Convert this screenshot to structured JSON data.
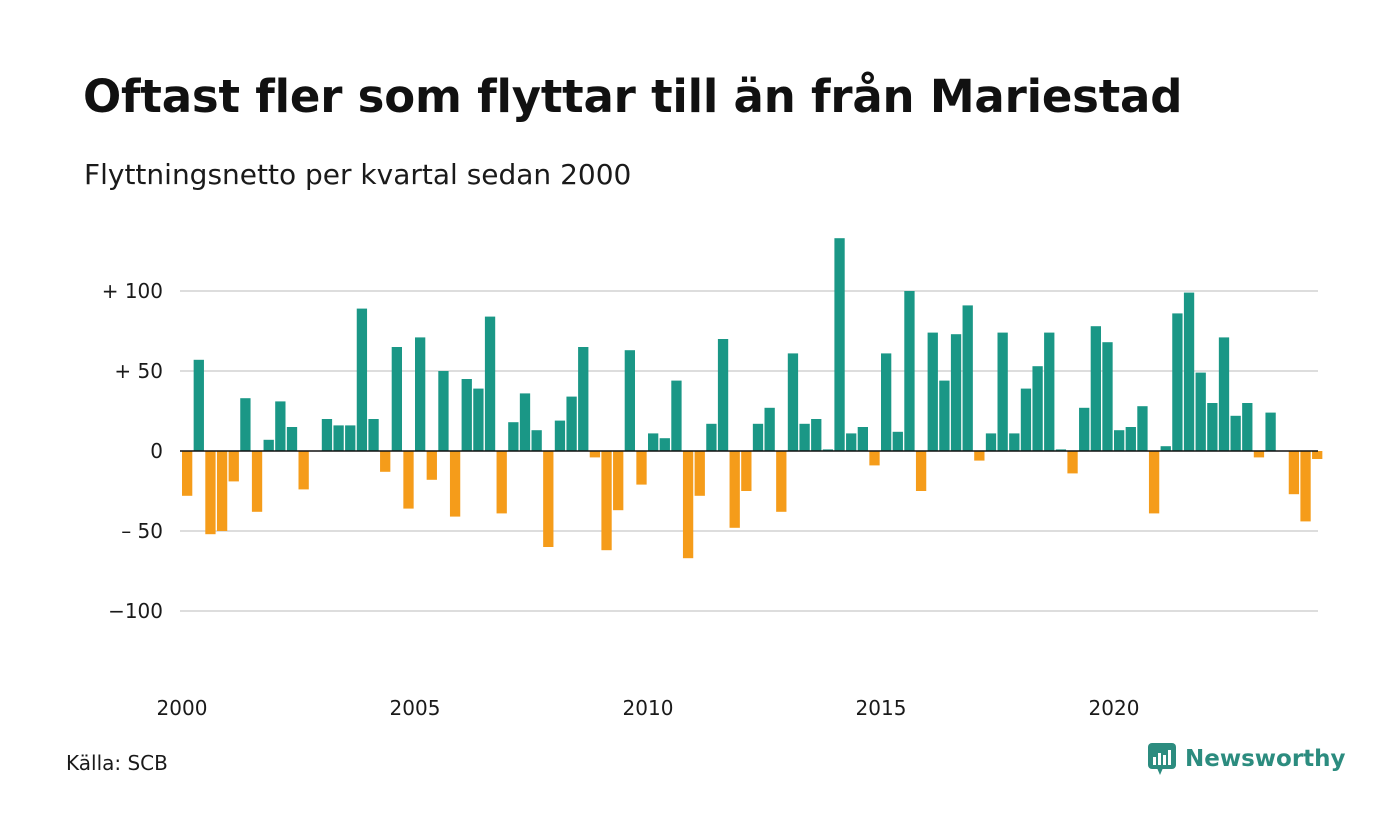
{
  "title": "Oftast fler som flyttar till än från Mariestad",
  "subtitle": "Flyttningsnetto per kvartal sedan 2000",
  "source": "Källa: SCB",
  "brand": {
    "name": "Newsworthy",
    "icon": "newsworthy-logo-icon",
    "color": "#2c8c7f"
  },
  "colors": {
    "positive": "#1a9786",
    "negative": "#f59c1a",
    "grid": "#dddddd",
    "zero_line": "#111111"
  },
  "chart_data": {
    "type": "bar",
    "title": "Oftast fler som flyttar till än från Mariestad",
    "subtitle": "Flyttningsnetto per kvartal sedan 2000",
    "xlabel": "",
    "ylabel": "",
    "ylim": [
      -150,
      150
    ],
    "xlim": [
      2000,
      2024.5
    ],
    "grid": true,
    "y_ticks": [
      {
        "value": 100,
        "label": "+ 100"
      },
      {
        "value": 50,
        "label": "+  50"
      },
      {
        "value": 0,
        "label": "0"
      },
      {
        "value": -50,
        "label": "– 50"
      },
      {
        "value": -100,
        "label": "−100"
      }
    ],
    "x_ticks": [
      {
        "value": 2000,
        "label": "2000"
      },
      {
        "value": 2005,
        "label": "2005"
      },
      {
        "value": 2010,
        "label": "2010"
      },
      {
        "value": 2015,
        "label": "2015"
      },
      {
        "value": 2020,
        "label": "2020"
      }
    ],
    "start_year": 2000,
    "periods_per_year": 4,
    "values": [
      -28,
      57,
      -52,
      -50,
      -19,
      33,
      -38,
      7,
      31,
      15,
      -24,
      0,
      20,
      16,
      16,
      89,
      20,
      -13,
      65,
      -36,
      71,
      -18,
      50,
      -41,
      45,
      39,
      84,
      -39,
      18,
      36,
      13,
      -60,
      19,
      34,
      65,
      -4,
      -62,
      -37,
      63,
      -21,
      11,
      8,
      44,
      -67,
      -28,
      17,
      70,
      -48,
      -25,
      17,
      27,
      -38,
      61,
      17,
      20,
      1,
      133,
      11,
      15,
      -9,
      61,
      12,
      100,
      -25,
      74,
      44,
      73,
      91,
      -6,
      11,
      74,
      11,
      39,
      53,
      74,
      1,
      -14,
      27,
      78,
      68,
      13,
      15,
      28,
      -39,
      3,
      86,
      99,
      49,
      30,
      71,
      22,
      30,
      -4,
      24,
      0,
      -27,
      -44,
      -5
    ]
  }
}
